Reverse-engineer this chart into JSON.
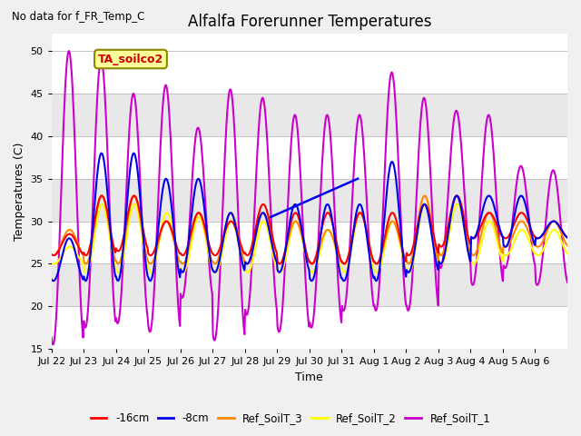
{
  "title": "Alfalfa Forerunner Temperatures",
  "subtitle": "No data for f_FR_Temp_C",
  "xlabel": "Time",
  "ylabel": "Temperatures (C)",
  "ylim": [
    15,
    52
  ],
  "yticks": [
    15,
    20,
    25,
    30,
    35,
    40,
    45,
    50
  ],
  "plot_bg_white": "#ffffff",
  "plot_bg_gray": "#e8e8e8",
  "fig_bg_color": "#f0f0f0",
  "annotation_box_label": "TA_soilco2",
  "annotation_box_color": "#ffff99",
  "annotation_box_edge": "#888800",
  "annotation_text_color": "#cc0000",
  "legend_entries": [
    "-16cm",
    "-8cm",
    "Ref_SoilT_3",
    "Ref_SoilT_2",
    "Ref_SoilT_1"
  ],
  "legend_colors": [
    "#ff0000",
    "#0000ee",
    "#ff8800",
    "#ffff00",
    "#cc00cc"
  ],
  "line_lw": 1.5,
  "dates": [
    "Jul 22",
    "Jul 23",
    "Jul 24",
    "Jul 25",
    "Jul 26",
    "Jul 27",
    "Jul 28",
    "Jul 29",
    "Jul 30",
    "Jul 31",
    "Aug 1",
    "Aug 2",
    "Aug 3",
    "Aug 4",
    "Aug 5",
    "Aug 6"
  ],
  "num_days": 16,
  "figsize": [
    6.4,
    4.8
  ],
  "dpi": 100
}
